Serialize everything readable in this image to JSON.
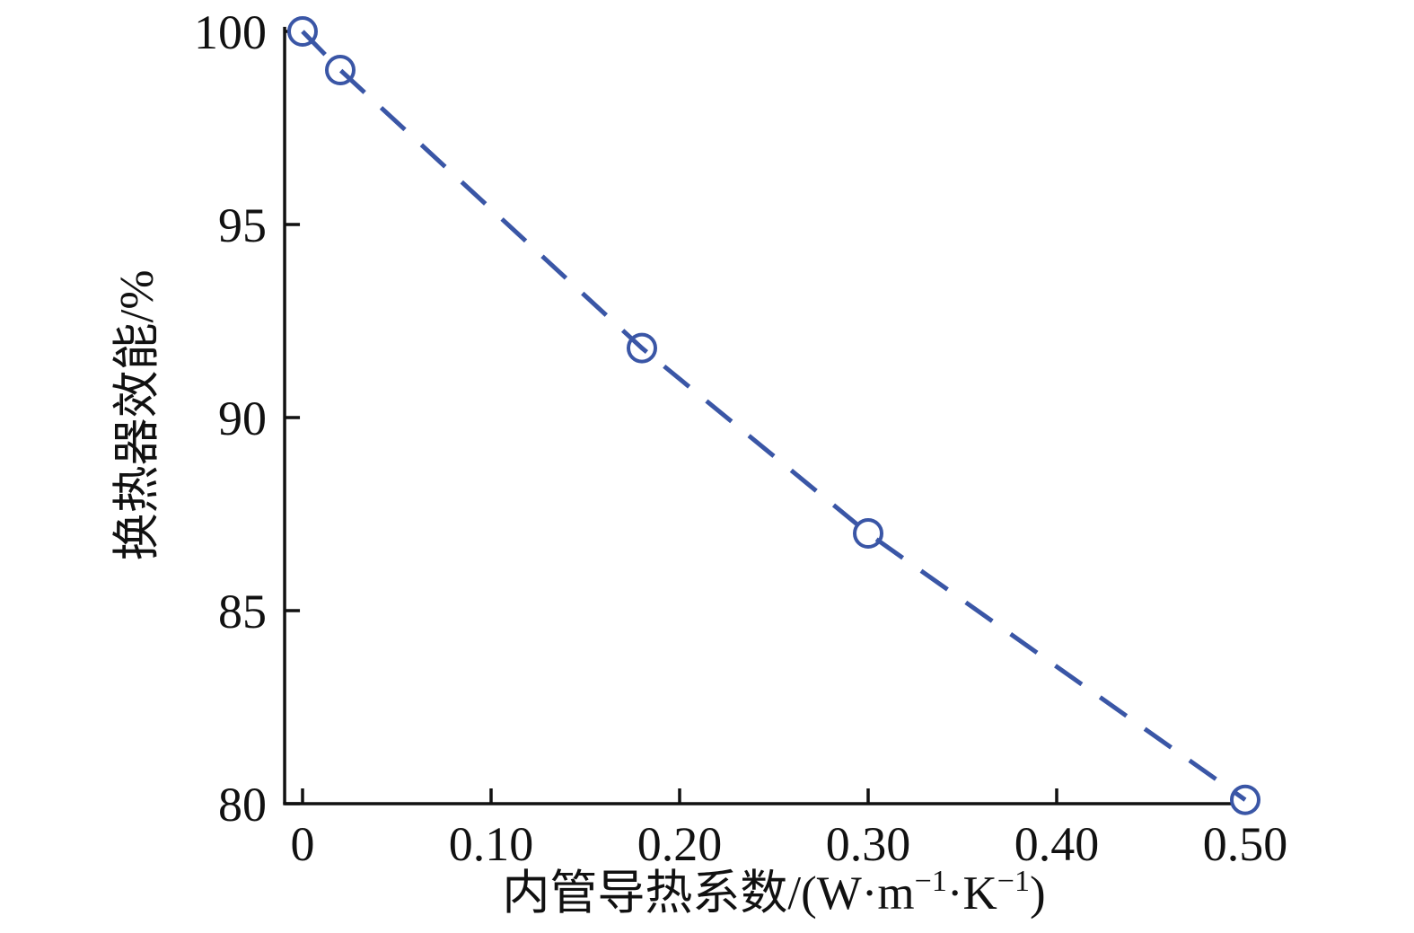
{
  "chart_data": {
    "type": "line",
    "title": "",
    "xlabel": "内管导热系数/(W·m⁻¹·K⁻¹)",
    "xlabel_parts": [
      {
        "text": "内管导热系数/(W·m",
        "sup": false
      },
      {
        "text": "−1",
        "sup": true
      },
      {
        "text": "·K",
        "sup": false
      },
      {
        "text": "−1",
        "sup": true
      },
      {
        "text": ")",
        "sup": false
      }
    ],
    "ylabel": "换热器效能/%",
    "series": [
      {
        "name": "换热器效能",
        "x": [
          0,
          0.02,
          0.18,
          0.3,
          0.5
        ],
        "y": [
          100.0,
          99.0,
          91.8,
          87.0,
          80.1
        ],
        "color": "#3a56a6",
        "line_style": "dashed",
        "marker": "open-circle"
      }
    ],
    "xticks": {
      "values": [
        0,
        0.1,
        0.2,
        0.3,
        0.4,
        0.5
      ],
      "labels": [
        "0",
        "0.10",
        "0.20",
        "0.30",
        "0.40",
        "0.50"
      ]
    },
    "yticks": {
      "values": [
        80,
        85,
        90,
        95,
        100
      ],
      "labels": [
        "80",
        "85",
        "90",
        "95",
        "100"
      ]
    },
    "xlim": [
      -0.0095,
      0.5025
    ],
    "ylim": [
      80,
      100.12
    ],
    "grid": false,
    "legend": "none",
    "axis_color": "#111111",
    "background_color": "#ffffff"
  }
}
